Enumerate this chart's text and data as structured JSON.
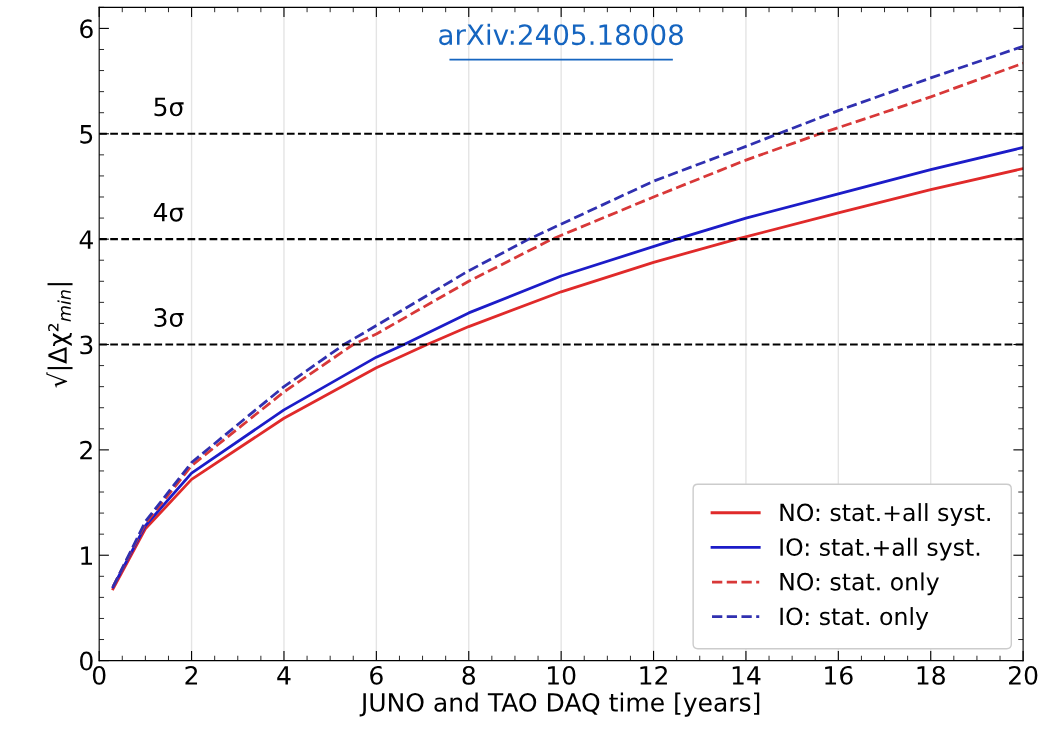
{
  "chart_data": {
    "type": "line",
    "xlabel": "JUNO and TAO DAQ time [years]",
    "ylabel": "√|Δχ²$_{min}$|",
    "xlim": [
      0,
      20
    ],
    "ylim": [
      0,
      6.2
    ],
    "xticks": [
      0,
      2,
      4,
      6,
      8,
      10,
      12,
      14,
      16,
      18,
      20
    ],
    "yticks": [
      0,
      1,
      2,
      3,
      4,
      5,
      6
    ],
    "grid": "x",
    "legend": "bottom right",
    "ref_lines": [
      {
        "axis": "y",
        "value": 3,
        "label": "3σ",
        "color": "#000000",
        "line_style": "dashed"
      },
      {
        "axis": "y",
        "value": 4,
        "label": "4σ",
        "color": "#000000",
        "line_style": "dashed"
      },
      {
        "axis": "y",
        "value": 5,
        "label": "5σ",
        "color": "#000000",
        "line_style": "dashed"
      }
    ],
    "annotations": [
      "arXiv:2405.18008"
    ],
    "series": [
      {
        "name": "NO: stat.+all syst.",
        "color": "#e02a2a",
        "line_style": "solid",
        "x": [
          0.3,
          1,
          2,
          4,
          6,
          7.1,
          8,
          10,
          12,
          13.8,
          16,
          18,
          20
        ],
        "values": [
          0.68,
          1.25,
          1.72,
          2.3,
          2.78,
          3.0,
          3.17,
          3.5,
          3.78,
          4.0,
          4.25,
          4.47,
          4.67
        ]
      },
      {
        "name": "IO: stat.+all syst.",
        "color": "#1c1cc8",
        "line_style": "solid",
        "x": [
          0.3,
          1,
          2,
          4,
          6,
          6.6,
          8,
          10,
          12.5,
          14,
          16,
          18,
          20
        ],
        "values": [
          0.7,
          1.28,
          1.78,
          2.38,
          2.88,
          3.0,
          3.3,
          3.65,
          4.0,
          4.2,
          4.43,
          4.66,
          4.87
        ]
      },
      {
        "name": "NO: stat. only",
        "color": "#d83838",
        "line_style": "dashed",
        "x": [
          0.3,
          1,
          2,
          4,
          5.5,
          6,
          8,
          9.8,
          12,
          14,
          15.6,
          18,
          20
        ],
        "values": [
          0.7,
          1.3,
          1.85,
          2.55,
          3.0,
          3.1,
          3.6,
          4.0,
          4.4,
          4.75,
          5.0,
          5.35,
          5.67
        ]
      },
      {
        "name": "IO: stat. only",
        "color": "#3030b0",
        "line_style": "dashed",
        "x": [
          0.3,
          1,
          2,
          4,
          5.3,
          6,
          8,
          9.3,
          12,
          14,
          14.7,
          16,
          18,
          20
        ],
        "values": [
          0.7,
          1.32,
          1.88,
          2.6,
          3.0,
          3.18,
          3.7,
          4.0,
          4.55,
          4.88,
          5.0,
          5.22,
          5.53,
          5.83
        ]
      }
    ]
  }
}
